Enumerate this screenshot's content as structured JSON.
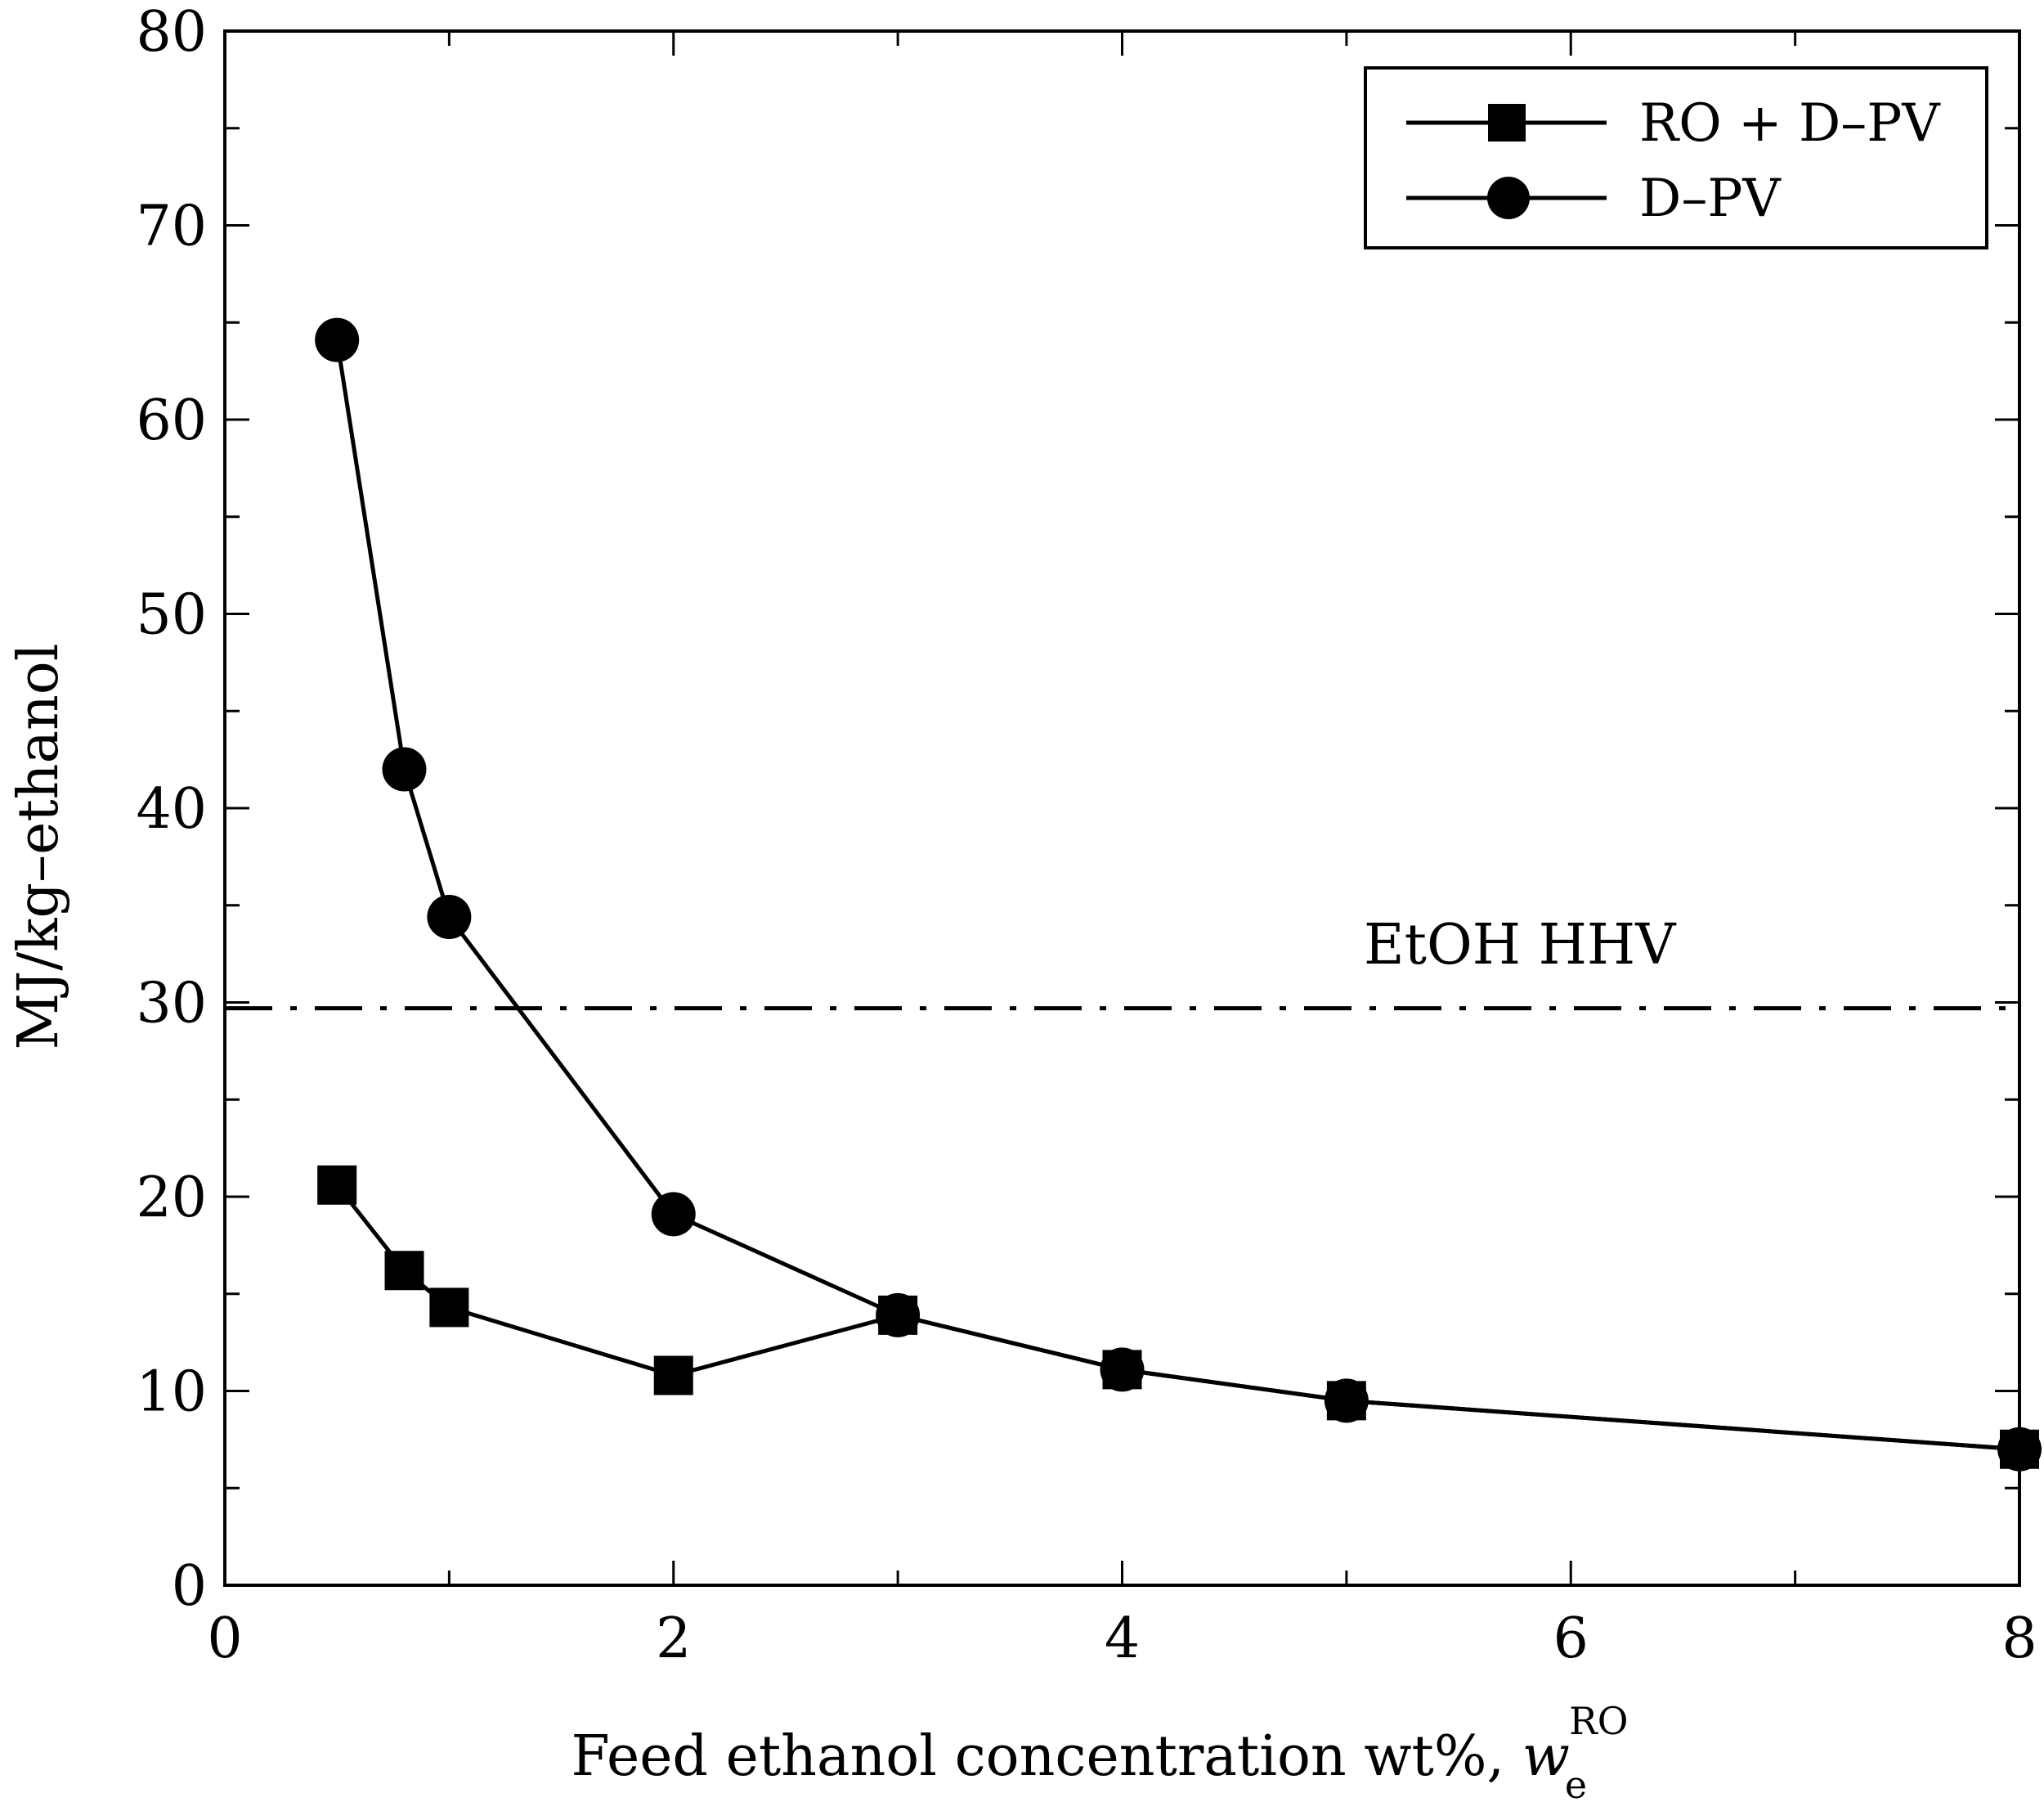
{
  "chart_data": {
    "type": "line",
    "title": "",
    "xlabel": "Feed ethanol concentration wt%, ",
    "xlabel_symbol": "w",
    "xlabel_subscript": "e",
    "xlabel_superscript": "RO",
    "ylabel": "MJ/kg–ethanol",
    "xlim": [
      0,
      8
    ],
    "ylim": [
      0,
      80
    ],
    "xticks": [
      0,
      2,
      4,
      6,
      8
    ],
    "yticks": [
      0,
      10,
      20,
      30,
      40,
      50,
      60,
      70,
      80
    ],
    "xtick_labels": [
      "0",
      "2",
      "4",
      "6",
      "8"
    ],
    "ytick_labels": [
      "0",
      "10",
      "20",
      "30",
      "40",
      "50",
      "60",
      "70",
      "80"
    ],
    "grid": false,
    "legend_position": "top-right",
    "series": [
      {
        "name": "RO + D–PV",
        "marker": "square",
        "x": [
          0.5,
          0.8,
          1,
          2,
          3,
          4,
          5,
          8
        ],
        "y": [
          20.6,
          16.2,
          14.3,
          10.8,
          13.9,
          11.1,
          9.5,
          7.0
        ]
      },
      {
        "name": "D–PV",
        "marker": "circle",
        "x": [
          0.5,
          0.8,
          1,
          2,
          3,
          4,
          5,
          8
        ],
        "y": [
          64.1,
          42.0,
          34.4,
          19.1,
          13.9,
          11.1,
          9.5,
          7.0
        ]
      }
    ],
    "reference_lines": [
      {
        "label": "EtOH HHV",
        "y": 29.7,
        "style": "dash-dot"
      }
    ]
  },
  "colors": {
    "ink": "#000000",
    "background": "#ffffff"
  }
}
